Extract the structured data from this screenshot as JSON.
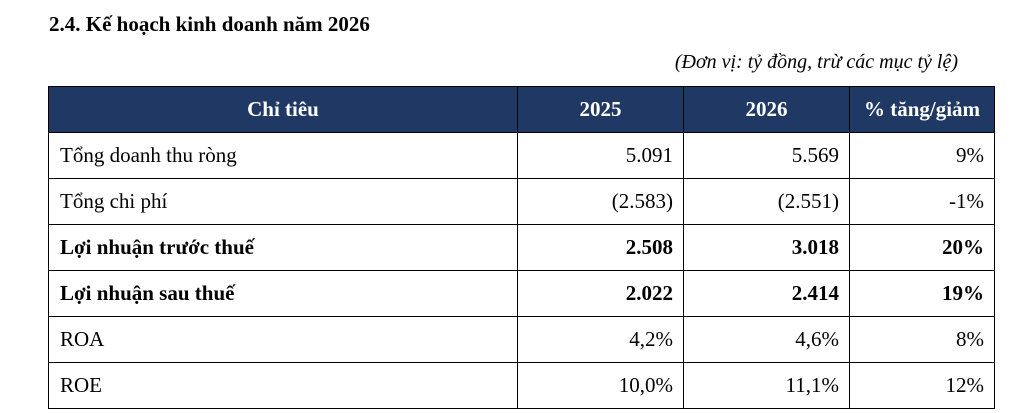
{
  "document": {
    "section_title": "2.4. Kế hoạch kinh doanh năm 2026",
    "unit_note": "(Đơn vị: tỷ đồng, trừ các mục tỷ lệ)"
  },
  "table": {
    "header_color": "#1f3864",
    "headers": [
      "Chỉ tiêu",
      "2025",
      "2026",
      "% tăng/giảm"
    ],
    "rows": [
      {
        "label": "Tổng doanh thu ròng",
        "y2025": "5.091",
        "y2026": "5.569",
        "change": "9%",
        "bold": false
      },
      {
        "label": "Tổng chi phí",
        "y2025": "(2.583)",
        "y2026": "(2.551)",
        "change": "-1%",
        "bold": false
      },
      {
        "label": "Lợi nhuận trước thuế",
        "y2025": "2.508",
        "y2026": "3.018",
        "change": "20%",
        "bold": true
      },
      {
        "label": "Lợi nhuận sau thuế",
        "y2025": "2.022",
        "y2026": "2.414",
        "change": "19%",
        "bold": true
      },
      {
        "label": "ROA",
        "y2025": "4,2%",
        "y2026": "4,6%",
        "change": "8%",
        "bold": false
      },
      {
        "label": "ROE",
        "y2025": "10,0%",
        "y2026": "11,1%",
        "change": "12%",
        "bold": false
      }
    ]
  }
}
